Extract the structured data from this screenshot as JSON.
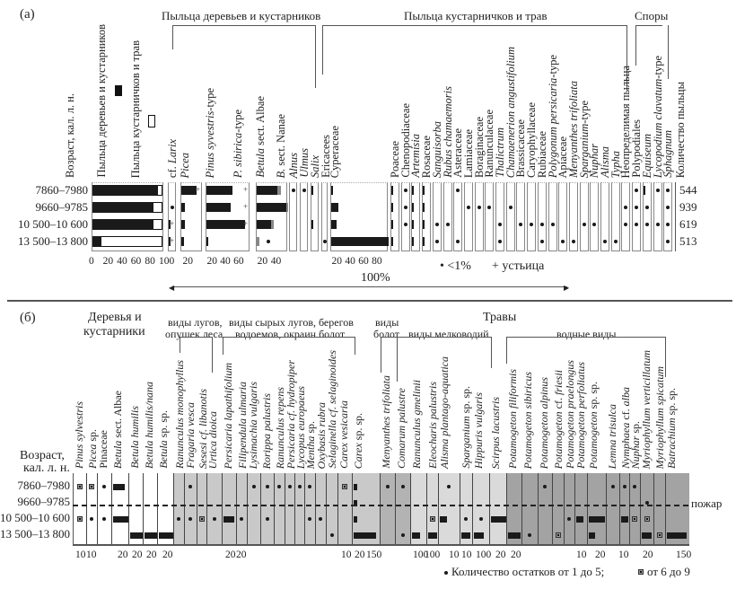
{
  "chart_data": [
    {
      "type": "bar",
      "panel": "(а)",
      "title_groups": [
        "Пыльца деревьев и кустарников",
        "Пыльца кустарничков и трав",
        "Споры"
      ],
      "age_label": "Возраст, кал. л. н.",
      "ages": [
        "7860–7980",
        "9660–9785",
        "10 500–10 600",
        "13 500–13 800"
      ],
      "pollen_counts": [
        "544",
        "939",
        "619",
        "513"
      ],
      "pollen_count_label": "Количество пыльцы",
      "sum_column": {
        "label_trees": "Пыльца деревьев и кустарников",
        "label_herbs": "Пыльца кустарничков и трав",
        "trees_shrubs_percent": [
          93,
          87,
          87,
          13
        ],
        "ticks": [
          "0",
          "20",
          "40",
          "60",
          "80",
          "100"
        ]
      },
      "taxa": [
        {
          "label": "cf. ",
          "label_italic": "Larix",
          "values": [
            0,
            "dot",
            1,
            2
          ],
          "stomata": [
            false,
            false,
            true,
            true
          ],
          "ticks": []
        },
        {
          "label_italic": "Picea",
          "values": [
            20,
            5,
            5,
            3
          ],
          "stomata": [
            true,
            false,
            false,
            false
          ],
          "ticks": [
            "20"
          ]
        },
        {
          "label_italic": "Pinus syvestris",
          "label": "-type",
          "label2_italic": "P. sibirica",
          "label2": "-type",
          "values": [
            37,
            35,
            55,
            1
          ],
          "stomata": [
            true,
            true,
            true,
            false
          ],
          "ticks": [
            "20",
            "40",
            "60"
          ]
        },
        {
          "label_italic": "Betula",
          "label": " sect. Albae",
          "label2_italic": "B.",
          "label2": " sect. Nanae",
          "values": [
            30,
            42,
            20,
            0
          ],
          "values2": [
            5,
            3,
            4,
            4
          ],
          "extra_dot": [
            false,
            false,
            false,
            true
          ],
          "ticks": [
            "20",
            "40"
          ]
        },
        {
          "label_italic": "Alnus",
          "values": [
            "dot",
            0,
            0,
            0
          ]
        },
        {
          "label_italic": "Ulmus",
          "values": [
            "dot",
            0,
            0,
            0
          ]
        },
        {
          "label_italic": "Salix",
          "values": [
            1,
            0,
            1,
            0
          ]
        },
        {
          "label": "Ericacees",
          "values": [
            0,
            0,
            0,
            "dot"
          ]
        },
        {
          "label": "Cyperaceae",
          "values": [
            3,
            10,
            8,
            82
          ],
          "ticks": [
            "20",
            "40",
            "60",
            "80"
          ]
        },
        {
          "label": "Poaceae",
          "values": [
            1,
            1,
            1,
            1
          ]
        },
        {
          "label": "Chenopodiaceae",
          "values": [
            "dot",
            "dot",
            "dot",
            0
          ]
        },
        {
          "label_italic": "Artemisia",
          "values": [
            1,
            1,
            1,
            2
          ]
        },
        {
          "label": "Rosaceae",
          "values": [
            1,
            1,
            2,
            1
          ]
        },
        {
          "label_italic": "Sanguisorba",
          "values": [
            0,
            0,
            "dot",
            "dot"
          ]
        },
        {
          "label_italic": "Rubus chamaemoris",
          "values": [
            0,
            0,
            "dot",
            0
          ]
        },
        {
          "label": "Asteraceae",
          "values": [
            "dot",
            0,
            0,
            "dot"
          ]
        },
        {
          "label": "Lamiaceae",
          "values": [
            0,
            "dot",
            0,
            0
          ]
        },
        {
          "label": "Boraginaceae",
          "values": [
            0,
            "dot",
            0,
            0
          ]
        },
        {
          "label": "Ranunculaceae",
          "values": [
            0,
            "dot",
            0,
            0
          ]
        },
        {
          "label_italic": "Thalictrum",
          "values": [
            0,
            0,
            "dot",
            "dot"
          ]
        },
        {
          "label_italic": "Chamaenerion angustifolium",
          "values": [
            0,
            "dot",
            0,
            0
          ]
        },
        {
          "label": "Brassicaceae",
          "values": [
            0,
            0,
            "dot",
            0
          ]
        },
        {
          "label": "Caryophyllaceae",
          "values": [
            0,
            0,
            "dot",
            0
          ]
        },
        {
          "label": "Rubiaceae",
          "values": [
            0,
            0,
            "dot",
            "dot"
          ]
        },
        {
          "label_italic": "Polygonum persicaria",
          "label": "-type",
          "values": [
            0,
            0,
            "dot",
            0
          ]
        },
        {
          "label": "Apiaceae",
          "values": [
            0,
            0,
            0,
            "dot"
          ]
        },
        {
          "label_italic": "Menyanthes trifoliata",
          "values": [
            0,
            0,
            0,
            "dot"
          ]
        },
        {
          "label_italic": "Sparganium",
          "label": "-type",
          "values": [
            0,
            0,
            "dot",
            0
          ]
        },
        {
          "label_italic": "Nuphar",
          "values": [
            0,
            0,
            "dot",
            0
          ]
        },
        {
          "label_italic": "Alisma",
          "values": [
            0,
            0,
            0,
            "dot"
          ]
        },
        {
          "label_italic": "Typha",
          "values": [
            0,
            0,
            0,
            "dot"
          ]
        },
        {
          "label": "Неопределимая пыльца",
          "values": [
            0,
            "dot",
            "dot",
            0
          ]
        },
        {
          "label": "Polypodiales",
          "values": [
            "dot",
            "dot",
            "dot",
            0
          ]
        },
        {
          "label_italic": "Equiseum",
          "values": [
            2,
            "dot",
            "dot",
            0
          ]
        },
        {
          "label_italic": "Lycopodium clavatum",
          "label": "-type",
          "values": [
            "dot",
            0,
            "dot",
            0
          ]
        },
        {
          "label_italic": "Sphagnum",
          "values": [
            "dot",
            "dot",
            "dot",
            "dot"
          ]
        }
      ],
      "legend": {
        "dot": "• <1%",
        "stomata": "+ устьица",
        "total": "100%"
      }
    },
    {
      "type": "bar",
      "panel": "(б)",
      "age_label_1": "Возраст,",
      "age_label_2": "кал. л. н.",
      "ages": [
        "7860–7980",
        "9660–9785",
        "10 500–10 600",
        "13 500–13 800"
      ],
      "groups": {
        "trees_1": "Деревья и",
        "trees_2": "кустарники",
        "meadow_1": "виды лугов,",
        "meadow_2": "опушек леса",
        "wet_1": "виды сырых лугов, берегов",
        "wet_2": "водоемов, окраин болот",
        "herbs": "Травы",
        "bog_1": "виды",
        "bog_2": "болот",
        "shallow": "виды мелководий",
        "aquatic": "водные виды"
      },
      "fire_label": "пожар",
      "legend": {
        "dot": "Количество остатков от 1 до 5;",
        "square": "от 6 до 9"
      },
      "taxa": [
        {
          "li": "Pinus sylvestris",
          "v": [
            "s",
            0,
            "s",
            0
          ],
          "ticks": [
            "10"
          ]
        },
        {
          "li": "Picea",
          "l": " sp.",
          "v": [
            "s",
            0,
            "d",
            0
          ],
          "ticks": [
            "10"
          ]
        },
        {
          "l": "Pinaceae",
          "v": [
            "d",
            0,
            "d",
            0
          ]
        },
        {
          "li": "Betula",
          "l": " sect. Albae",
          "v": [
            17,
            0,
            22,
            0
          ],
          "ticks": [
            "20"
          ]
        },
        {
          "li": "Betula humilis",
          "v": [
            0,
            0,
            0,
            22
          ],
          "ticks": [
            "20"
          ]
        },
        {
          "li": "Betula humilis/nana",
          "v": [
            0,
            0,
            0,
            22
          ],
          "ticks": [
            "20"
          ]
        },
        {
          "li": "Betula",
          "l": " sp. sp.",
          "v": [
            0,
            0,
            0,
            22
          ],
          "ticks": [
            "20"
          ]
        },
        {
          "li": "Ranunculus monophyllus",
          "v": [
            0,
            0,
            "d",
            0
          ]
        },
        {
          "li": "Fragaria vesca",
          "v": [
            "d",
            0,
            "d",
            0
          ]
        },
        {
          "li": "Sesesi cf. libanotis",
          "v": [
            0,
            0,
            "s",
            0
          ]
        },
        {
          "li": "Urtica dioica",
          "v": [
            0,
            0,
            "d",
            0
          ]
        },
        {
          "li": "Persicaria lapathifolium",
          "v": [
            0,
            0,
            18,
            0
          ],
          "ticks": [
            "20"
          ]
        },
        {
          "li": "Filipendula ulmaria",
          "v": [
            0,
            0,
            "d",
            0
          ],
          "ticks": [
            "20"
          ]
        },
        {
          "li": "Lysimachia vulgaris",
          "v": [
            "d",
            0,
            0,
            0
          ]
        },
        {
          "li": "Rorippa palustris",
          "v": [
            "d",
            0,
            "d",
            0
          ]
        },
        {
          "li": "Ranunculus repens",
          "v": [
            "d",
            0,
            0,
            0
          ]
        },
        {
          "li": "Persicaria cf. hydropiper",
          "v": [
            "d",
            0,
            0,
            0
          ]
        },
        {
          "li": "Lycopus europaeus",
          "v": [
            "d",
            0,
            0,
            0
          ]
        },
        {
          "li": "Mentha",
          "l": " sp.",
          "v": [
            "d",
            0,
            "d",
            0
          ]
        },
        {
          "li": "Oxybasis rubra",
          "v": [
            0,
            0,
            "d",
            0
          ]
        },
        {
          "li": "Selaginella cf. selaginoides",
          "v": [
            0,
            0,
            0,
            "d"
          ]
        },
        {
          "li": "Carex vesicaria",
          "v": [
            "s",
            0,
            0,
            0
          ],
          "ticks": [
            "10"
          ]
        },
        {
          "li": "Carex",
          "l": " sp. sp.",
          "v": [
            12,
            20,
            8,
            150
          ],
          "ticks": [
            "20",
            "150"
          ]
        },
        {
          "li": "Menyanthes trifoliata",
          "v": [
            "d",
            0,
            0,
            0
          ]
        },
        {
          "li": "Comarum palustre",
          "v": [
            "d",
            0,
            0,
            "d"
          ]
        },
        {
          "li": "Ranunculus gmelinii",
          "v": [
            0,
            0,
            0,
            60
          ],
          "ticks": [
            "100"
          ]
        },
        {
          "li": "Eleocharis palustris",
          "v": [
            0,
            0,
            "s",
            100
          ],
          "ticks": [
            "100"
          ]
        },
        {
          "li": "Alisma plantago-aquatica",
          "v": [
            "d",
            0,
            4,
            0
          ],
          "ticks": [
            "10"
          ]
        },
        {
          "li": "Sparganium",
          "l": " sp. sp.",
          "v": [
            0,
            0,
            "d",
            9
          ],
          "ticks": [
            "10"
          ]
        },
        {
          "li": "Hippuris vulgaris",
          "v": [
            0,
            0,
            "d",
            70
          ],
          "ticks": [
            "100"
          ]
        },
        {
          "li": "Scirpus lacustris",
          "v": [
            0,
            0,
            22,
            0
          ],
          "ticks": [
            "20"
          ]
        },
        {
          "li": "Potamogeton filiformis",
          "v": [
            0,
            0,
            0,
            20
          ],
          "ticks": [
            "20"
          ]
        },
        {
          "li": "Potamogeton sibiricus",
          "v": [
            0,
            0,
            0,
            "d"
          ]
        },
        {
          "li": "Potamogeton alpinus",
          "v": [
            "d",
            0,
            0,
            0
          ]
        },
        {
          "li": "Potamogeton",
          "l": " cf. ",
          "l2i": "friesii",
          "v": [
            0,
            0,
            0,
            "s"
          ]
        },
        {
          "li": "Potamogeton praelongus",
          "v": [
            0,
            0,
            "d",
            0
          ]
        },
        {
          "li": "Potamogeton perfoliatus",
          "v": [
            0,
            0,
            7,
            0
          ],
          "ticks": [
            "10"
          ]
        },
        {
          "li": "Potamogeton",
          "l": " sp. sp.",
          "v": [
            0,
            0,
            22,
            8
          ],
          "ticks": [
            "20"
          ]
        },
        {
          "li": "Lemna trisulca",
          "v": [
            "d",
            0,
            0,
            0
          ]
        },
        {
          "li": "Nymphaea",
          "l": " cf. ",
          "l2i": "alba",
          "v": [
            "d",
            0,
            9,
            0
          ],
          "ticks": [
            "10"
          ]
        },
        {
          "li": "Nuphar",
          "l": " sp.",
          "v": [
            "d",
            0,
            "s",
            0
          ]
        },
        {
          "li": "Myriophyllum verticillatum",
          "v": [
            0,
            "d",
            "s",
            18
          ],
          "ticks": [
            "20"
          ]
        },
        {
          "li": "Myriophyllum spicatum",
          "v": [
            0,
            0,
            0,
            "s"
          ]
        },
        {
          "li": "Batrachium",
          "l": " sp. sp.",
          "v": [
            0,
            0,
            0,
            150
          ],
          "ticks": [
            "150"
          ]
        }
      ]
    }
  ],
  "colors": {
    "bar": "#1a1a1a",
    "meadow_bg": "#c9c9c9",
    "bog_bg": "#b3b3b3",
    "shallow_bg": "#dadada",
    "aquatic_bg": "#a3a3a3"
  }
}
